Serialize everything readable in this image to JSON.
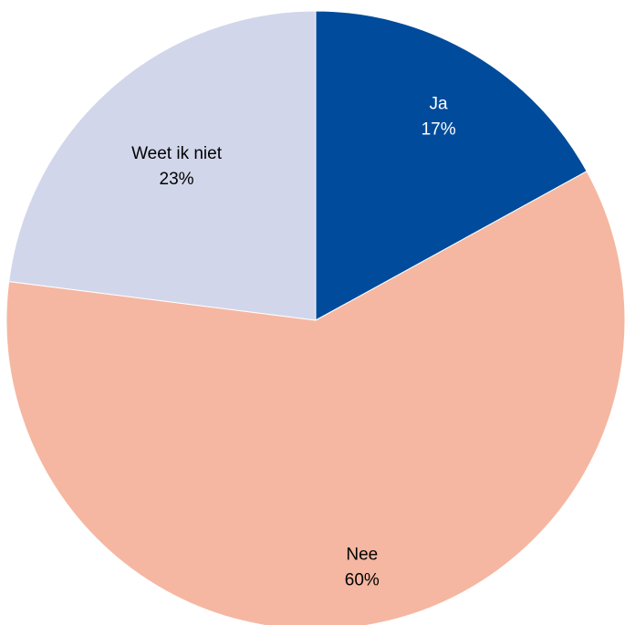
{
  "chart_data": {
    "type": "pie",
    "title": "",
    "slices": [
      {
        "label": "Ja",
        "value": 17,
        "value_label": "17%",
        "color": "#004b9b",
        "label_color": "#ffffff"
      },
      {
        "label": "Nee",
        "value": 60,
        "value_label": "60%",
        "color": "#f5b7a1",
        "label_color": "#000000"
      },
      {
        "label": "Weet ik niet",
        "value": 23,
        "value_label": "23%",
        "color": "#d2d6eb",
        "label_color": "#000000"
      }
    ],
    "start_angle": "12 o'clock",
    "direction": "clockwise",
    "legend": "none"
  }
}
